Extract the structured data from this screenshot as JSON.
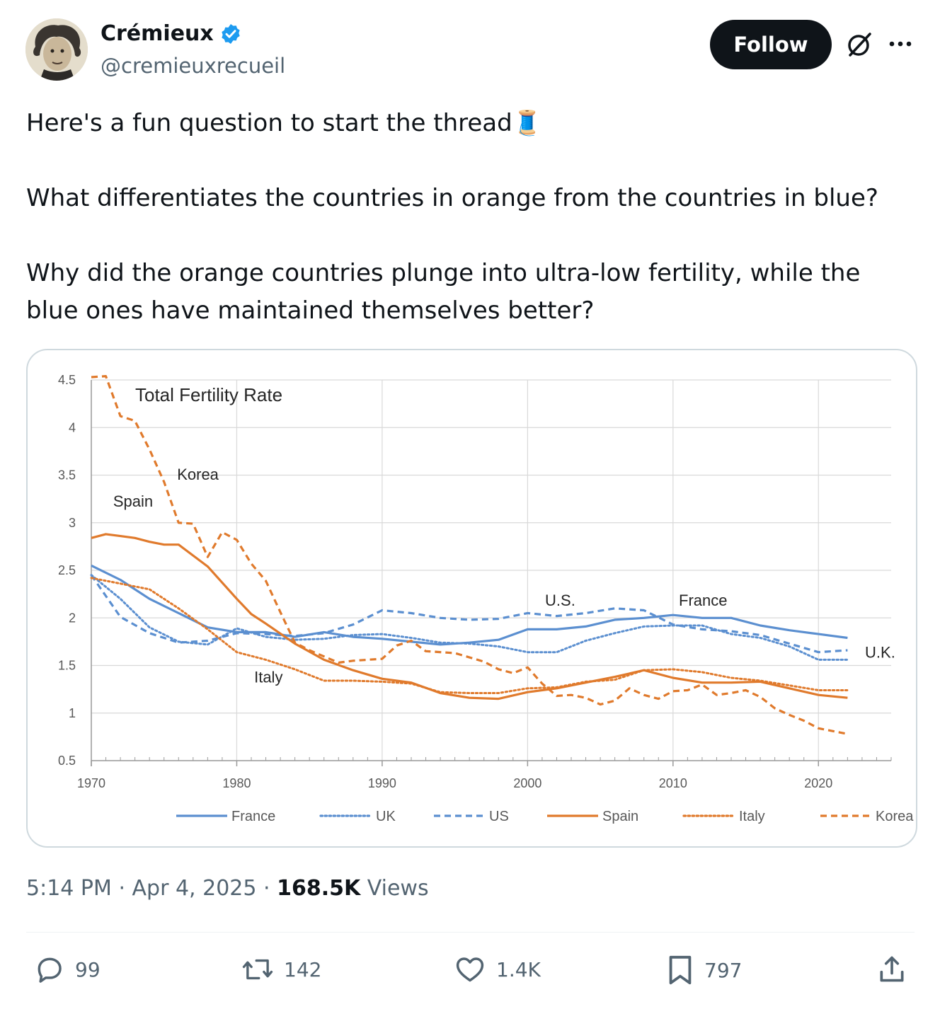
{
  "author": {
    "name": "Crémieux",
    "handle": "@cremieuxrecueil",
    "verified": true,
    "follow_label": "Follow"
  },
  "tweet": {
    "line1": "Here's a fun question to start the thread🧵",
    "line2": "What differentiates the countries in orange from the countries in blue?",
    "line3": "Why did the orange countries plunge into ultra-low fertility, while the blue ones have maintained themselves better?"
  },
  "meta": {
    "time": "5:14 PM",
    "date": "Apr 4, 2025",
    "views_count": "168.5K",
    "views_label": "Views"
  },
  "actions": {
    "replies": "99",
    "reposts": "142",
    "likes": "1.4K",
    "bookmarks": "797"
  },
  "colors": {
    "blue": "#5b8fd0",
    "orange": "#e07a2c",
    "accent": "#1d9bf0"
  },
  "chart_data": {
    "type": "line",
    "title": "Total Fertility Rate",
    "xlabel": "",
    "ylabel": "",
    "xlim": [
      1970,
      2025
    ],
    "ylim": [
      0.5,
      4.5
    ],
    "xticks": [
      "1970",
      "1980",
      "1990",
      "2000",
      "2010",
      "2020"
    ],
    "yticks": [
      "0.5",
      "1",
      "1.5",
      "2",
      "2.5",
      "3",
      "3.5",
      "4",
      "4.5"
    ],
    "grid": true,
    "legend_position": "bottom",
    "annotations": [
      "Korea",
      "Spain",
      "Italy",
      "U.S.",
      "France",
      "U.K."
    ],
    "series": [
      {
        "name": "France",
        "color": "blue",
        "style": "solid",
        "x": [
          1970,
          1972,
          1974,
          1976,
          1978,
          1980,
          1982,
          1984,
          1986,
          1988,
          1990,
          1992,
          1994,
          1996,
          1998,
          2000,
          2002,
          2004,
          2006,
          2008,
          2010,
          2012,
          2014,
          2016,
          2018,
          2020,
          2022
        ],
        "y": [
          2.55,
          2.4,
          2.2,
          2.05,
          1.9,
          1.85,
          1.85,
          1.8,
          1.85,
          1.8,
          1.78,
          1.75,
          1.72,
          1.74,
          1.77,
          1.88,
          1.88,
          1.91,
          1.98,
          2.0,
          2.03,
          2.0,
          2.0,
          1.92,
          1.87,
          1.83,
          1.79
        ]
      },
      {
        "name": "UK",
        "color": "blue",
        "style": "dotted",
        "x": [
          1970,
          1972,
          1974,
          1976,
          1978,
          1980,
          1982,
          1984,
          1986,
          1988,
          1990,
          1992,
          1994,
          1996,
          1998,
          2000,
          2002,
          2004,
          2006,
          2008,
          2010,
          2012,
          2014,
          2016,
          2018,
          2020,
          2022
        ],
        "y": [
          2.45,
          2.2,
          1.9,
          1.75,
          1.72,
          1.89,
          1.8,
          1.77,
          1.78,
          1.82,
          1.83,
          1.79,
          1.74,
          1.73,
          1.7,
          1.64,
          1.64,
          1.76,
          1.84,
          1.91,
          1.92,
          1.92,
          1.83,
          1.79,
          1.7,
          1.56,
          1.56
        ]
      },
      {
        "name": "US",
        "color": "blue",
        "style": "dashed",
        "x": [
          1970,
          1972,
          1974,
          1976,
          1978,
          1980,
          1982,
          1984,
          1986,
          1988,
          1990,
          1992,
          1994,
          1996,
          1998,
          2000,
          2002,
          2004,
          2006,
          2008,
          2010,
          2012,
          2014,
          2016,
          2018,
          2020,
          2022
        ],
        "y": [
          2.45,
          2.01,
          1.84,
          1.74,
          1.76,
          1.84,
          1.83,
          1.81,
          1.84,
          1.93,
          2.08,
          2.05,
          2.0,
          1.98,
          1.99,
          2.05,
          2.02,
          2.05,
          2.1,
          2.08,
          1.93,
          1.88,
          1.86,
          1.82,
          1.73,
          1.64,
          1.66
        ]
      },
      {
        "name": "Spain",
        "color": "orange",
        "style": "solid",
        "x": [
          1970,
          1971,
          1972,
          1973,
          1974,
          1975,
          1976,
          1978,
          1980,
          1981,
          1982,
          1984,
          1986,
          1988,
          1990,
          1992,
          1994,
          1996,
          1998,
          2000,
          2002,
          2004,
          2006,
          2008,
          2010,
          2012,
          2014,
          2016,
          2018,
          2020,
          2022
        ],
        "y": [
          2.84,
          2.88,
          2.86,
          2.84,
          2.8,
          2.77,
          2.77,
          2.54,
          2.2,
          2.04,
          1.94,
          1.73,
          1.56,
          1.45,
          1.36,
          1.32,
          1.21,
          1.16,
          1.15,
          1.22,
          1.26,
          1.32,
          1.38,
          1.45,
          1.37,
          1.32,
          1.32,
          1.33,
          1.26,
          1.19,
          1.16
        ]
      },
      {
        "name": "Italy",
        "color": "orange",
        "style": "dotted",
        "x": [
          1970,
          1972,
          1974,
          1976,
          1978,
          1980,
          1982,
          1984,
          1986,
          1988,
          1990,
          1992,
          1994,
          1996,
          1998,
          2000,
          2002,
          2004,
          2006,
          2008,
          2010,
          2012,
          2014,
          2016,
          2018,
          2020,
          2022
        ],
        "y": [
          2.42,
          2.36,
          2.3,
          2.1,
          1.88,
          1.64,
          1.56,
          1.46,
          1.34,
          1.34,
          1.33,
          1.31,
          1.22,
          1.21,
          1.21,
          1.26,
          1.27,
          1.33,
          1.35,
          1.45,
          1.46,
          1.43,
          1.37,
          1.34,
          1.29,
          1.24,
          1.24
        ]
      },
      {
        "name": "Korea",
        "color": "orange",
        "style": "dashed",
        "x": [
          1970,
          1971,
          1972,
          1973,
          1974,
          1975,
          1976,
          1977,
          1978,
          1979,
          1980,
          1981,
          1982,
          1983,
          1984,
          1985,
          1987,
          1988,
          1989,
          1990,
          1991,
          1992,
          1993,
          1995,
          1997,
          1998,
          1999,
          2000,
          2001,
          2002,
          2003,
          2004,
          2005,
          2006,
          2007,
          2008,
          2009,
          2010,
          2011,
          2012,
          2013,
          2014,
          2015,
          2016,
          2017,
          2018,
          2019,
          2020,
          2021,
          2022
        ],
        "y": [
          4.53,
          4.54,
          4.12,
          4.07,
          3.77,
          3.43,
          3.0,
          2.99,
          2.64,
          2.9,
          2.82,
          2.57,
          2.39,
          2.06,
          1.74,
          1.66,
          1.53,
          1.55,
          1.56,
          1.57,
          1.71,
          1.76,
          1.65,
          1.63,
          1.54,
          1.46,
          1.42,
          1.48,
          1.31,
          1.18,
          1.19,
          1.16,
          1.09,
          1.13,
          1.26,
          1.19,
          1.15,
          1.23,
          1.24,
          1.3,
          1.19,
          1.21,
          1.24,
          1.17,
          1.05,
          0.98,
          0.92,
          0.84,
          0.81,
          0.78
        ]
      }
    ]
  }
}
